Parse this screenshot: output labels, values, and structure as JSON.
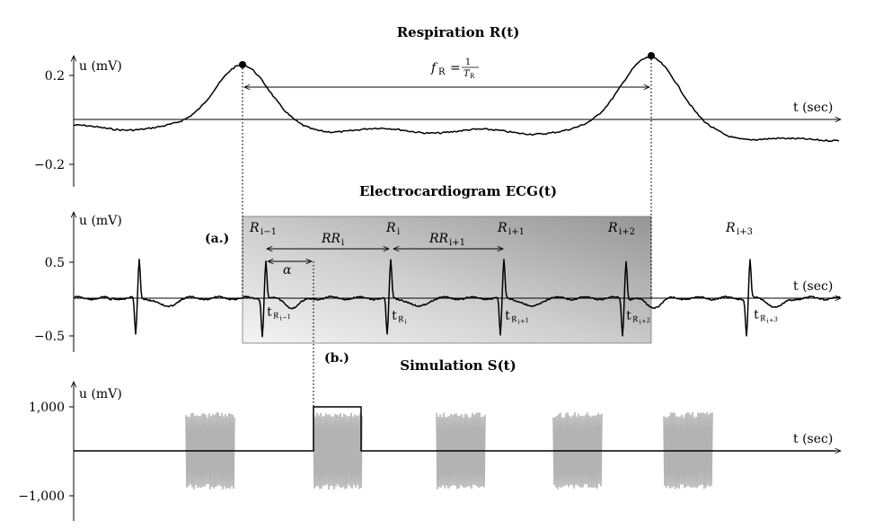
{
  "panels": {
    "respiration": {
      "title": "Respiration R(t)",
      "y_label": "u (mV)",
      "x_label": "t (sec)",
      "yticks": [
        "0.2",
        "−0.2"
      ],
      "freq_label": "f",
      "freq_sub": "R",
      "freq_eq": "=",
      "freq_num": "1",
      "freq_den": "T",
      "freq_den_sub": "R"
    },
    "ecg": {
      "title": "Electrocardiogram ECG(t)",
      "y_label": "u (mV)",
      "x_label": "t (sec)",
      "yticks": [
        "0.5",
        "−0.5"
      ],
      "marker_a": "(a.)",
      "alpha": "α",
      "r_labels": [
        {
          "main": "R",
          "sub": "i−1"
        },
        {
          "main": "R",
          "sub": "i"
        },
        {
          "main": "R",
          "sub": "i+1"
        },
        {
          "main": "R",
          "sub": "i+2"
        },
        {
          "main": "R",
          "sub": "i+3"
        }
      ],
      "rr_labels": [
        {
          "main": "RR",
          "sub": "i"
        },
        {
          "main": "RR",
          "sub": "i+1"
        }
      ],
      "t_labels": [
        {
          "main": "t",
          "sub": "R",
          "subsub": "i−1"
        },
        {
          "main": "t",
          "sub": "R",
          "subsub": "i"
        },
        {
          "main": "t",
          "sub": "R",
          "subsub": "i+1"
        },
        {
          "main": "t",
          "sub": "R",
          "subsub": "i+2"
        },
        {
          "main": "t",
          "sub": "R",
          "subsub": "i+3"
        }
      ]
    },
    "simulation": {
      "title": "Simulation S(t)",
      "y_label": "u (mV)",
      "x_label": "t (sec)",
      "yticks": [
        "1,000",
        "−1,000"
      ],
      "marker_b": "(b.)"
    }
  },
  "colors": {
    "trace": "#000000",
    "burst": "#b3b3b3",
    "shade_light": "#f2f2f2",
    "shade_dark": "#999999"
  }
}
